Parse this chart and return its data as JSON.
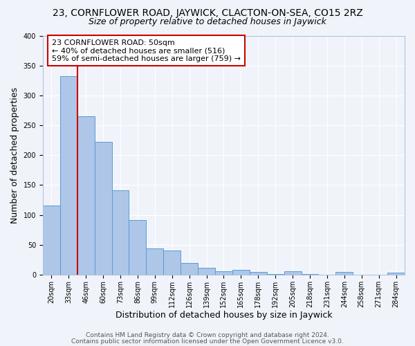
{
  "title": "23, CORNFLOWER ROAD, JAYWICK, CLACTON-ON-SEA, CO15 2RZ",
  "subtitle": "Size of property relative to detached houses in Jaywick",
  "xlabel": "Distribution of detached houses by size in Jaywick",
  "ylabel": "Number of detached properties",
  "bar_labels": [
    "20sqm",
    "33sqm",
    "46sqm",
    "60sqm",
    "73sqm",
    "86sqm",
    "99sqm",
    "112sqm",
    "126sqm",
    "139sqm",
    "152sqm",
    "165sqm",
    "178sqm",
    "192sqm",
    "205sqm",
    "218sqm",
    "231sqm",
    "244sqm",
    "258sqm",
    "271sqm",
    "284sqm"
  ],
  "bar_heights": [
    116,
    332,
    265,
    222,
    141,
    91,
    44,
    40,
    20,
    11,
    6,
    8,
    4,
    1,
    6,
    1,
    0,
    5,
    0,
    0,
    3
  ],
  "bar_color": "#aec6e8",
  "bar_edge_color": "#5b9bd5",
  "vline_x": 1.5,
  "vline_color": "#cc0000",
  "annotation_text": "23 CORNFLOWER ROAD: 50sqm\n← 40% of detached houses are smaller (516)\n59% of semi-detached houses are larger (759) →",
  "annotation_box_color": "#ffffff",
  "annotation_box_edgecolor": "#cc0000",
  "ylim": [
    0,
    400
  ],
  "yticks": [
    0,
    50,
    100,
    150,
    200,
    250,
    300,
    350,
    400
  ],
  "footer_line1": "Contains HM Land Registry data © Crown copyright and database right 2024.",
  "footer_line2": "Contains public sector information licensed under the Open Government Licence v3.0.",
  "background_color": "#f0f4fa",
  "grid_color": "#ffffff",
  "title_fontsize": 10,
  "subtitle_fontsize": 9,
  "axis_label_fontsize": 9,
  "tick_fontsize": 7,
  "footer_fontsize": 6.5,
  "annotation_fontsize": 8
}
